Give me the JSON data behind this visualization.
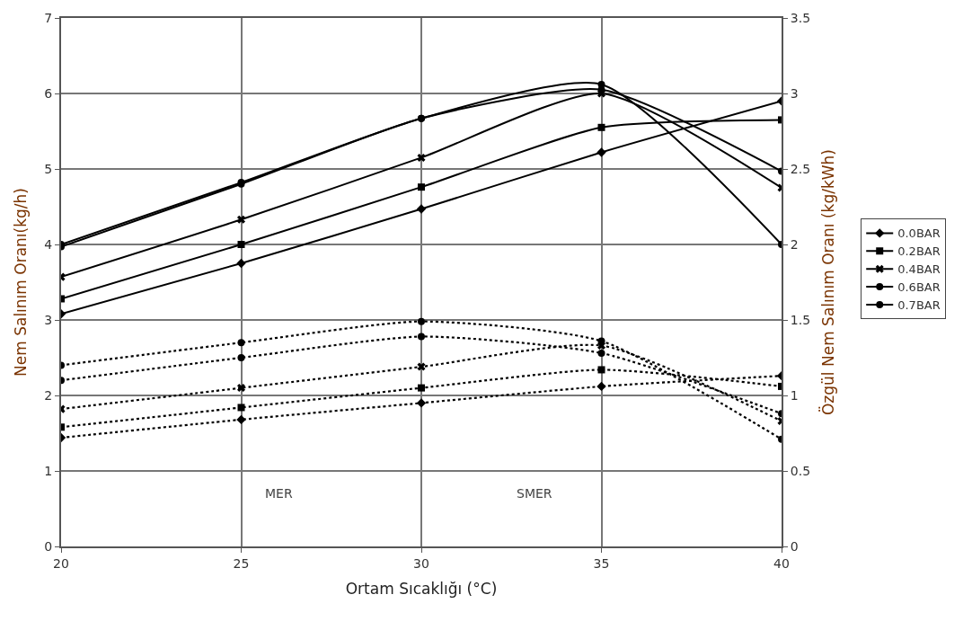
{
  "chart_data": {
    "type": "line",
    "xlabel": "Ortam Sıcaklığı (°C)",
    "ylabel": "Nem Salınım Oranı(kg/h)",
    "y2label": "Özgül Nem Salınım Oranı (kg/kWh)",
    "x": [
      20,
      25,
      30,
      35,
      40
    ],
    "xlim": [
      20,
      40
    ],
    "xticks": [
      20,
      25,
      30,
      35,
      40
    ],
    "ylim": [
      0,
      7
    ],
    "yticks": [
      0,
      1,
      2,
      3,
      4,
      5,
      6,
      7
    ],
    "y2lim": [
      0,
      3.5
    ],
    "y2ticks": [
      0,
      0.5,
      1,
      1.5,
      2,
      2.5,
      3,
      3.5
    ],
    "grid": true,
    "legend": "right",
    "annotations": [
      "MER",
      "SMER"
    ],
    "series": [
      {
        "name": "0.0BAR",
        "color": "#000000",
        "marker": "diamond",
        "line_style": "solid",
        "values": [
          3.08,
          3.75,
          4.47,
          5.22,
          5.9
        ]
      },
      {
        "name": "0.2BAR",
        "color": "#000000",
        "marker": "square",
        "line_style": "solid",
        "values": [
          3.28,
          4.0,
          4.76,
          5.55,
          5.65
        ]
      },
      {
        "name": "0.4BAR",
        "color": "#000000",
        "marker": "cross",
        "line_style": "solid",
        "values": [
          3.57,
          4.33,
          5.15,
          6.0,
          4.75
        ]
      },
      {
        "name": "0.6BAR",
        "color": "#000000",
        "marker": "circle",
        "line_style": "solid",
        "values": [
          3.97,
          4.8,
          5.67,
          6.05,
          4.97
        ]
      },
      {
        "name": "0.7BAR",
        "color": "#000000",
        "marker": "circle",
        "line_style": "solid",
        "values": [
          4.0,
          4.82,
          5.67,
          6.12,
          4.0
        ]
      },
      {
        "color": "#000000",
        "marker": "diamond",
        "line_style": "dotted",
        "axis": "y2",
        "values": [
          0.72,
          0.84,
          0.95,
          1.06,
          1.13
        ]
      },
      {
        "color": "#000000",
        "marker": "square",
        "line_style": "dotted",
        "axis": "y2",
        "values": [
          0.79,
          0.92,
          1.05,
          1.17,
          1.06
        ]
      },
      {
        "color": "#000000",
        "marker": "cross",
        "line_style": "dotted",
        "axis": "y2",
        "values": [
          0.91,
          1.05,
          1.19,
          1.33,
          0.83
        ]
      },
      {
        "color": "#000000",
        "marker": "circle",
        "line_style": "dotted",
        "axis": "y2",
        "values": [
          1.1,
          1.25,
          1.39,
          1.28,
          0.88
        ]
      },
      {
        "color": "#000000",
        "marker": "circle",
        "line_style": "dotted",
        "axis": "y2",
        "values": [
          1.2,
          1.35,
          1.49,
          1.36,
          0.71
        ]
      }
    ]
  }
}
